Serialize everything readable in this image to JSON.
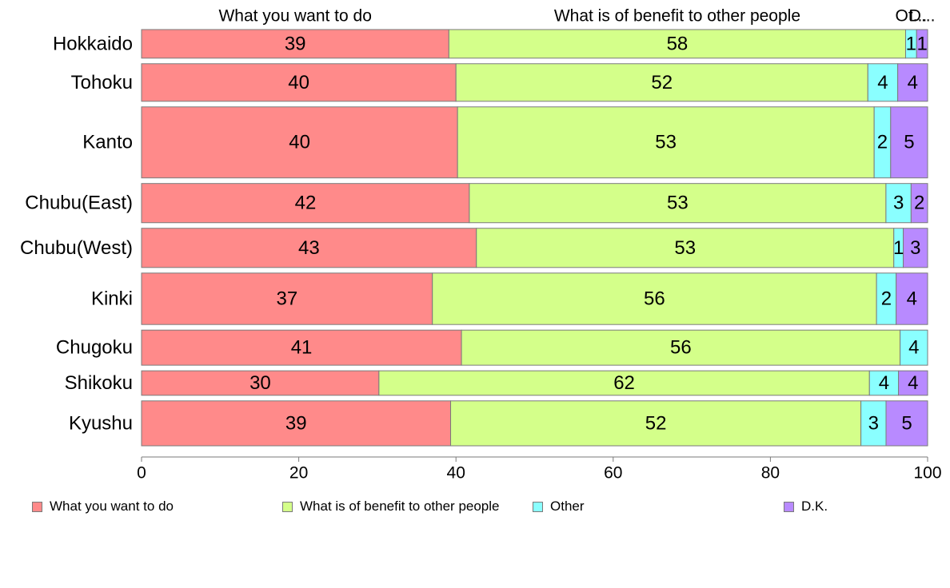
{
  "chart_data": {
    "type": "bar",
    "orientation": "horizontal",
    "stacked": true,
    "categories": [
      "Hokkaido",
      "Tohoku",
      "Kanto",
      "Chubu(East)",
      "Chubu(West)",
      "Kinki",
      "Chugoku",
      "Shikoku",
      "Kyushu"
    ],
    "category_weights": [
      3.5,
      4.6,
      8.7,
      4.8,
      4.8,
      6.3,
      4.3,
      3.0,
      5.5
    ],
    "series": [
      {
        "name": "What you want to do",
        "color": "#ff8a8a",
        "values": [
          39.1,
          40.0,
          40.2,
          41.7,
          42.6,
          37.0,
          40.7,
          30.2,
          39.4
        ],
        "labels": [
          "39",
          "40",
          "40",
          "42",
          "43",
          "37",
          "41",
          "30",
          "39"
        ]
      },
      {
        "name": "What is of benefit to other people",
        "color": "#d4ff8a",
        "values": [
          58.1,
          52.4,
          53.0,
          53.0,
          53.1,
          56.5,
          55.8,
          62.4,
          52.3
        ],
        "labels": [
          "58",
          "52",
          "53",
          "53",
          "53",
          "56",
          "56",
          "62",
          "52"
        ]
      },
      {
        "name": "Other",
        "color": "#8affff",
        "values": [
          1.4,
          3.8,
          2.1,
          3.2,
          1.2,
          2.5,
          3.5,
          3.7,
          3.2
        ],
        "labels": [
          "1",
          "4",
          "2",
          "3",
          "1",
          "2",
          "4",
          "4",
          "3"
        ]
      },
      {
        "name": "D.K.",
        "color": "#b88aff",
        "values": [
          1.4,
          3.8,
          4.7,
          2.1,
          3.1,
          4.0,
          0.0,
          3.7,
          5.3
        ],
        "labels": [
          "1",
          "4",
          "5",
          "2",
          "3",
          "4",
          "",
          "4",
          "5"
        ]
      }
    ],
    "top_labels": [
      "What you want to do",
      "What is of benefit to other people",
      "Ot...",
      "D..."
    ],
    "xlim": [
      0,
      100
    ],
    "xticks": [
      "0",
      "20",
      "40",
      "60",
      "80",
      "100"
    ],
    "grid": false,
    "legend_position": "bottom"
  }
}
